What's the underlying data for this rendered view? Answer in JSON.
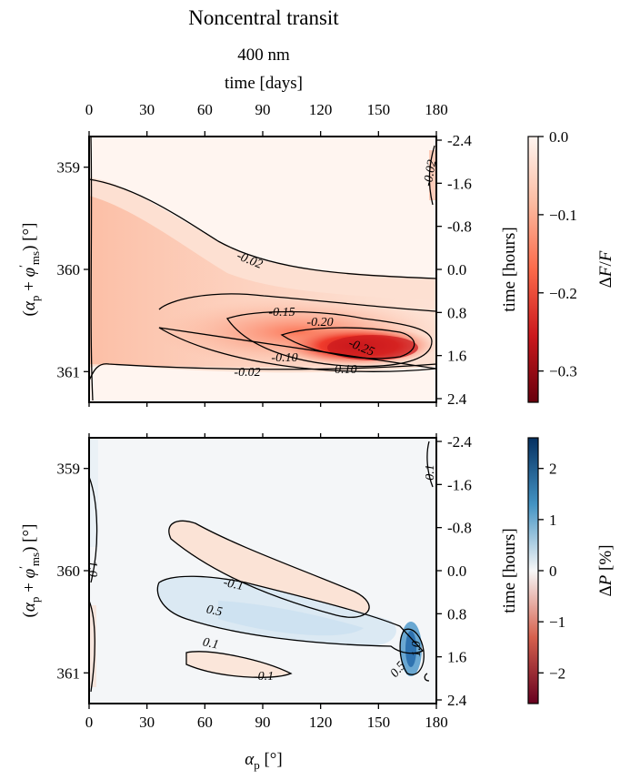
{
  "title": "Noncentral transit",
  "subtitle": "400 nm",
  "chart_data": [
    {
      "type": "heatmap",
      "name": "top",
      "xlabel_top": "time [days]",
      "xticks_top": [
        "0",
        "30",
        "60",
        "90",
        "120",
        "150",
        "180"
      ],
      "xlim": [
        0,
        180
      ],
      "ylabel": "(α_p + φ'_ms) [°]",
      "yticks": [
        "359",
        "360",
        "361"
      ],
      "ylim": [
        358.7,
        361.3
      ],
      "ylabel_right": "time [hours]",
      "yticks_right": [
        "-2.4",
        "-1.6",
        "-0.8",
        "0.0",
        "0.8",
        "1.6",
        "2.4"
      ],
      "colorbar_label": "ΔF/F",
      "colorbar_ticks": [
        "0.0",
        "−0.1",
        "−0.2",
        "−0.3"
      ],
      "colorbar_range": [
        -0.34,
        0.0
      ],
      "colormap": [
        "#67000d",
        "#cb181d",
        "#fb6a4a",
        "#fcbba1",
        "#fff5f0"
      ],
      "contour_labels": [
        "-0.02",
        "-0.02",
        "-0.02",
        "-0.15",
        "-0.20",
        "-0.25",
        "-0.10",
        "-0.10"
      ],
      "min_value": -0.3,
      "min_location": {
        "x": 140,
        "y": 360.75
      }
    },
    {
      "type": "heatmap",
      "name": "bottom",
      "xlabel": "α_p [°]",
      "xticks": [
        "0",
        "30",
        "60",
        "90",
        "120",
        "150",
        "180"
      ],
      "xlim": [
        0,
        180
      ],
      "ylabel": "(α_p + φ'_ms) [°]",
      "yticks": [
        "359",
        "360",
        "361"
      ],
      "ylim": [
        358.7,
        361.3
      ],
      "ylabel_right": "time [hours]",
      "yticks_right": [
        "-2.4",
        "-1.6",
        "-0.8",
        "0.0",
        "0.8",
        "1.6",
        "2.4"
      ],
      "colorbar_label": "ΔP [%]",
      "colorbar_ticks": [
        "2",
        "1",
        "0",
        "−1",
        "−2"
      ],
      "colorbar_range": [
        -2.6,
        2.6
      ],
      "colormap": [
        "#67001f",
        "#d6604d",
        "#f7f7f7",
        "#4393c3",
        "#053061"
      ],
      "contour_labels": [
        "-0.1",
        "0.5",
        "0.1",
        "-0.1",
        "1.0",
        "0.5",
        "1.0",
        "0.1"
      ]
    }
  ]
}
